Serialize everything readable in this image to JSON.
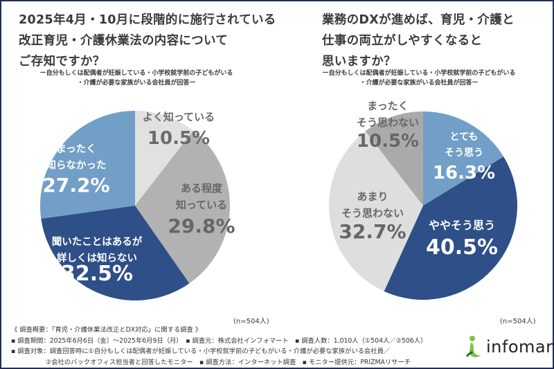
{
  "chart_data": [
    {
      "type": "pie",
      "title": "2025年4月・10月に段階的に施行されている改正育児・介護休業法の内容についてご存知ですか？",
      "title_lines": [
        "2025年4月・10月に段階的に施行されている",
        "改正育児・介護休業法の内容について",
        "ご存知ですか？"
      ],
      "subtitle_lines": [
        "ー自分もしくは配偶者が妊娠している・小学校就学前の子どもがいる",
        "・介護が必要な家族がいる会社員が回答ー"
      ],
      "start": "12 o'clock",
      "direction": "clockwise",
      "slices": [
        {
          "label_lines": [
            "よく知っている"
          ],
          "value": 10.5,
          "value_label": "10.5%",
          "color": "#e1e1e1",
          "text_color": "#6b6b6b"
        },
        {
          "label_lines": [
            "ある程度",
            "知っている"
          ],
          "value": 29.8,
          "value_label": "29.8%",
          "color": "#b2b2b2",
          "text_color": "#666666"
        },
        {
          "label_lines": [
            "聞いたことはあるが",
            "詳しくは知らない"
          ],
          "value": 32.5,
          "value_label": "32.5%",
          "color": "#2e4f87",
          "text_color": "#ffffff"
        },
        {
          "label_lines": [
            "まったく",
            "知らなかった"
          ],
          "value": 27.2,
          "value_label": "27.2%",
          "color": "#729fc7",
          "text_color": "#ffffff"
        }
      ],
      "sample": "(n=504人)"
    },
    {
      "type": "pie",
      "title": "業務のDXが進めば、育児・介護と仕事の両立がしやすくなると思いますか？",
      "title_lines": [
        "業務のDXが進めば、育児・介護と",
        "仕事の両立がしやすくなると",
        "思いますか？"
      ],
      "subtitle_lines": [
        "ー自分もしくは配偶者が妊娠している・小学校就学前の子どもがいる",
        "・介護が必要な家族がいる会社員が回答ー"
      ],
      "start": "12 o'clock",
      "direction": "clockwise",
      "slices": [
        {
          "label_lines": [
            "とても",
            "そう思う"
          ],
          "value": 16.3,
          "value_label": "16.3%",
          "color": "#729fc7",
          "text_color": "#ffffff"
        },
        {
          "label_lines": [
            "ややそう思う"
          ],
          "value": 40.5,
          "value_label": "40.5%",
          "color": "#2e4f87",
          "text_color": "#ffffff"
        },
        {
          "label_lines": [
            "あまり",
            "そう思わない"
          ],
          "value": 32.7,
          "value_label": "32.7%",
          "color": "#dedede",
          "text_color": "#666666"
        },
        {
          "label_lines": [
            "まったく",
            "そう思わない"
          ],
          "value": 10.5,
          "value_label": "10.5%",
          "color": "#aaaaaa",
          "text_color": "#666666"
        }
      ],
      "sample": "(n=504人)"
    }
  ],
  "footer": {
    "line1": "《 調査概要：「育児・介護休業法改正とDX対応」に関する調査 》",
    "line2": "▪ 調査期間：2025年6月6日（金）～2025年6月9日（月）　▪ 調査元：株式会社インフォマート　▪ 調査人数：1,010人（①504人／②506人）",
    "line3": "▪ 調査対象：調査回答時に①自分もしくは配偶者が妊娠している・小学校就学前の子どもがいる・介護が必要な家族がいる会社員／",
    "line4": "②会社のバックオフィス担当者と回答したモニター　▪ 調査方法：インターネット調査　▪ モニター提供元：PRIZMAリサーチ"
  },
  "logo": {
    "text": "infomart",
    "icon": "infomart-person-icon",
    "colors": {
      "green": "#7dc242",
      "dark_green": "#1e6b3a"
    }
  },
  "frame_color": "#1f2d5c"
}
